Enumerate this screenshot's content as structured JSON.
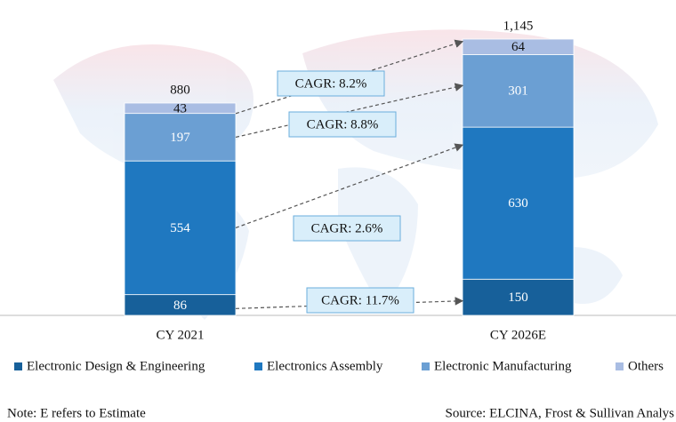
{
  "chart_data": {
    "type": "stacked_bar",
    "categories": [
      "CY 2021",
      "CY 2026E"
    ],
    "series": [
      {
        "name": "Electronic Design & Engineering",
        "color": "#17609a",
        "values": [
          86,
          150
        ]
      },
      {
        "name": "Electronics Assembly",
        "color": "#1f78c0",
        "values": [
          554,
          630
        ]
      },
      {
        "name": "Electronic Manufacturing",
        "color": "#6b9fd3",
        "values": [
          197,
          301
        ]
      },
      {
        "name": "Others",
        "color": "#a9bde3",
        "values": [
          43,
          64
        ]
      }
    ],
    "totals": [
      880,
      1145
    ],
    "total_labels": [
      "880",
      "1,145"
    ],
    "annotations": [
      "CAGR: 11.7%",
      "CAGR: 2.6%",
      "CAGR: 8.8%",
      "CAGR: 8.2%"
    ],
    "note": "Note: E refers to Estimate",
    "source": "Source: ELCINA, Frost & Sullivan Analys"
  }
}
